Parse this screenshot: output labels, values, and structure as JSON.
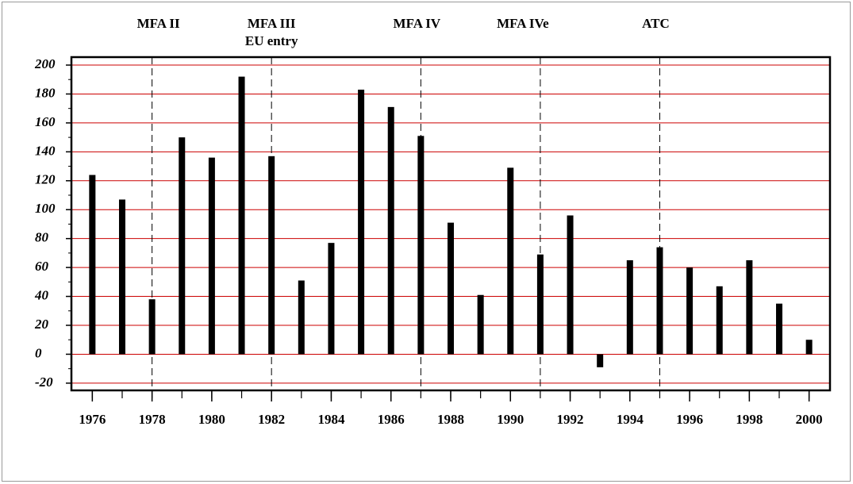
{
  "chart_data": {
    "type": "bar",
    "x": [
      1976,
      1977,
      1978,
      1979,
      1980,
      1981,
      1982,
      1983,
      1984,
      1985,
      1986,
      1987,
      1988,
      1989,
      1990,
      1991,
      1992,
      1993,
      1994,
      1995,
      1996,
      1997,
      1998,
      1999,
      2000
    ],
    "values": [
      124,
      107,
      38,
      150,
      136,
      192,
      137,
      51,
      77,
      183,
      171,
      151,
      91,
      41,
      129,
      69,
      96,
      -9,
      65,
      74,
      60,
      47,
      65,
      35,
      10
    ],
    "color": "#000000",
    "xlim": [
      1975.3,
      2000.7
    ],
    "ylim": [
      -25,
      205.5
    ],
    "xticks": [
      1976,
      1978,
      1980,
      1982,
      1984,
      1986,
      1988,
      1990,
      1992,
      1994,
      1996,
      1998,
      2000
    ],
    "yticks": [
      -20,
      0,
      20,
      40,
      60,
      80,
      100,
      120,
      140,
      160,
      180,
      200
    ],
    "grid": true,
    "grid_color": "#cc0000",
    "annotations": [
      {
        "x": 1978,
        "label": [
          "MFA II"
        ]
      },
      {
        "x": 1982,
        "label": [
          "MFA III",
          "EU entry"
        ]
      },
      {
        "x": 1987,
        "label": [
          "MFA IV"
        ]
      },
      {
        "x": 1991,
        "label": [
          "MFA IVe"
        ]
      },
      {
        "x": 1995,
        "label": [
          "ATC"
        ]
      }
    ]
  }
}
